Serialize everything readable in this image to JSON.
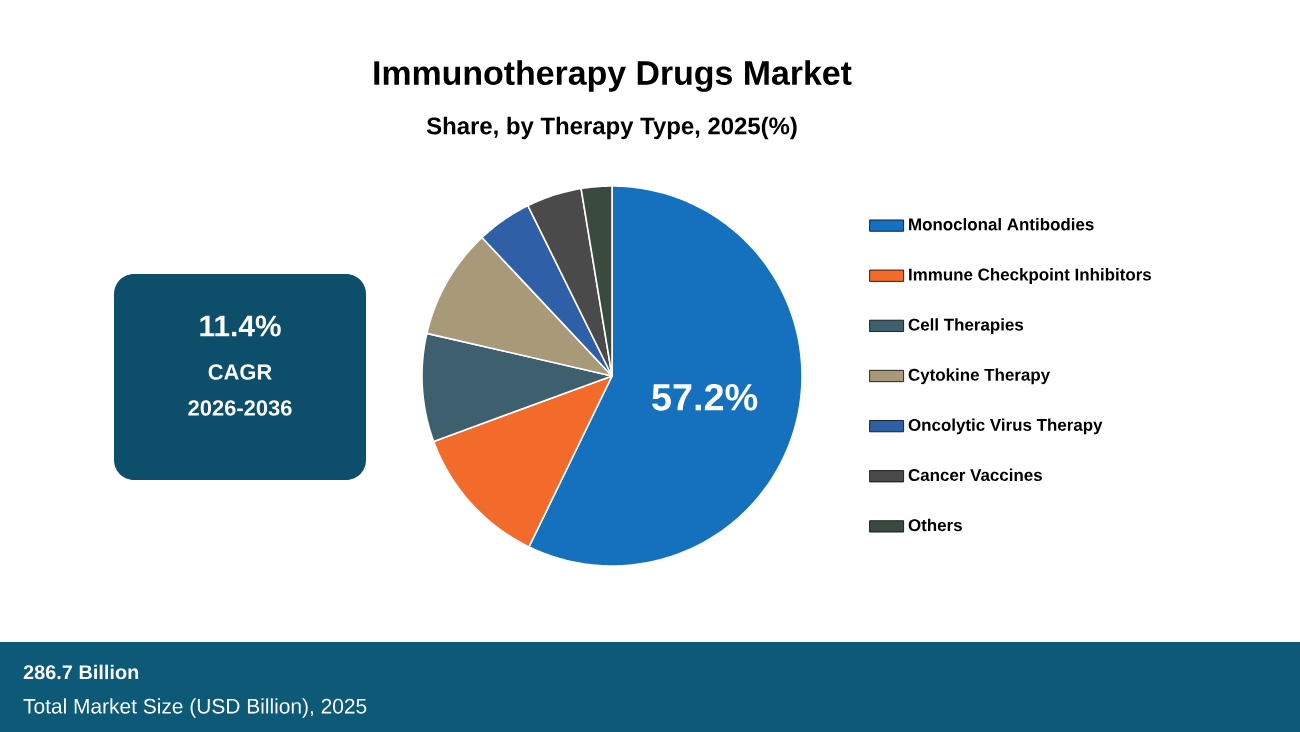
{
  "chart_data": {
    "type": "pie",
    "title": "Immunotherapy Drugs Market",
    "subtitle": "Share, by Therapy Type, 2025(%)",
    "categories": [
      "Monoclonal Antibodies",
      "Immune Checkpoint Inhibitors",
      "Cell Therapies",
      "Cytokine Therapy",
      "Oncolytic Virus Therapy",
      "Cancer Vaccines",
      "Others"
    ],
    "values": [
      57.2,
      12.2,
      9.2,
      9.4,
      4.7,
      4.7,
      2.6
    ],
    "colors": [
      "#1570be",
      "#f26b2a",
      "#3d5f6e",
      "#a89a78",
      "#2f5fa6",
      "#4a4a4a",
      "#3a4a3f"
    ],
    "value_labels": [
      "57.2%",
      null,
      null,
      null,
      null,
      null,
      null
    ],
    "legend": "right",
    "annotations": [
      "11.4%",
      "CAGR",
      "2026-2036",
      "286.7 Billion",
      "Total Market Size (USD Billion), 2025"
    ]
  }
}
